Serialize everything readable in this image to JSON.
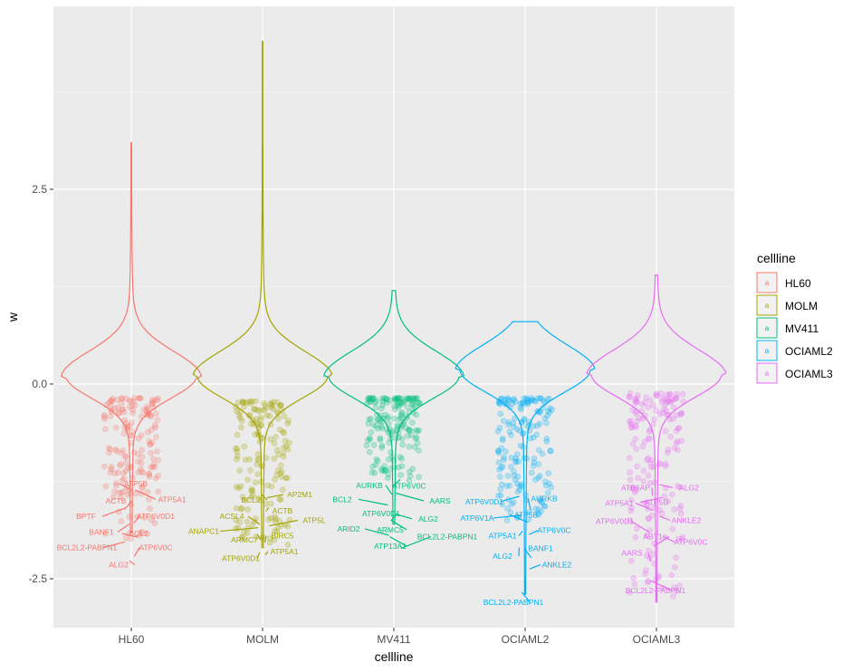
{
  "chart_data": {
    "type": "violin",
    "xlabel": "cellline",
    "ylabel": "w",
    "ylim": [
      -3.0,
      4.9
    ],
    "y_ticks": [
      -2.5,
      0.0,
      2.5
    ],
    "y_tick_labels": [
      "-2.5",
      "0.0",
      "2.5"
    ],
    "categories": [
      "HL60",
      "MOLM",
      "MV411",
      "OCIAML2",
      "OCIAML3"
    ],
    "legend": {
      "title": "cellline",
      "position": "right",
      "items": [
        "HL60",
        "MOLM",
        "MV411",
        "OCIAML2",
        "OCIAML3"
      ]
    },
    "colors": {
      "HL60": "#F8766D",
      "MOLM": "#A3A500",
      "MV411": "#00BF7D",
      "OCIAML2": "#00B0F6",
      "OCIAML3": "#E76BF3"
    },
    "series": [
      {
        "name": "HL60",
        "violin": {
          "min": -1.9,
          "max": 3.1,
          "mode": 0.1,
          "width": 0.47
        },
        "points": {
          "count": 170,
          "ymin": -2.0,
          "ymax": -0.18
        },
        "labels": [
          {
            "text": "ATP5B",
            "x": 150,
            "y": -1.28
          },
          {
            "text": "ATP5A1",
            "x": 190,
            "y": -1.48
          },
          {
            "text": "ACTB",
            "x": 128,
            "y": -1.5
          },
          {
            "text": "BPTF",
            "x": 95,
            "y": -1.7
          },
          {
            "text": "ATP6V0D1",
            "x": 172,
            "y": -1.7
          },
          {
            "text": "BANF1",
            "x": 112,
            "y": -1.9
          },
          {
            "text": "BCL2",
            "x": 153,
            "y": -1.92
          },
          {
            "text": "BCL2L2-PABPN1",
            "x": 96,
            "y": -2.1
          },
          {
            "text": "ATP6V0C",
            "x": 172,
            "y": -2.1
          },
          {
            "text": "ALG2",
            "x": 131,
            "y": -2.32
          }
        ]
      },
      {
        "name": "MOLM",
        "violin": {
          "min": -2.1,
          "max": 4.4,
          "mode": 0.1,
          "width": 0.47
        },
        "points": {
          "count": 170,
          "ymin": -2.1,
          "ymax": -0.22
        },
        "labels": [
          {
            "text": "AP2M1",
            "x": 331,
            "y": -1.42
          },
          {
            "text": "BCL2",
            "x": 277,
            "y": -1.49
          },
          {
            "text": "ACSL4",
            "x": 256,
            "y": -1.7
          },
          {
            "text": "ACTB",
            "x": 312,
            "y": -1.63
          },
          {
            "text": "ATP5L",
            "x": 347,
            "y": -1.75
          },
          {
            "text": "ANAPC1",
            "x": 225,
            "y": -1.89
          },
          {
            "text": "BIRC5",
            "x": 312,
            "y": -1.95
          },
          {
            "text": "ARMC7",
            "x": 270,
            "y": -2.0
          },
          {
            "text": "ATP5A1",
            "x": 314,
            "y": -2.15
          },
          {
            "text": "ATP6V0D1",
            "x": 266,
            "y": -2.24
          }
        ]
      },
      {
        "name": "MV411",
        "violin": {
          "min": -1.8,
          "max": 1.2,
          "mode": 0.1,
          "width": 0.47
        },
        "points": {
          "count": 170,
          "ymin": -1.25,
          "ymax": -0.18
        },
        "labels": [
          {
            "text": "AURKB",
            "x": 408,
            "y": -1.3
          },
          {
            "text": "ATP6V0C",
            "x": 452,
            "y": -1.31
          },
          {
            "text": "BCL2",
            "x": 378,
            "y": -1.48
          },
          {
            "text": "AARS",
            "x": 486,
            "y": -1.5
          },
          {
            "text": "ATP6V0D1",
            "x": 421,
            "y": -1.66
          },
          {
            "text": "ALG2",
            "x": 473,
            "y": -1.73
          },
          {
            "text": "ARID2",
            "x": 385,
            "y": -1.86
          },
          {
            "text": "ARMC5",
            "x": 431,
            "y": -1.87
          },
          {
            "text": "BCL2L2-PABPN1",
            "x": 494,
            "y": -1.96
          },
          {
            "text": "ATP13A1",
            "x": 431,
            "y": -2.08
          }
        ]
      },
      {
        "name": "OCIAML2",
        "violin": {
          "min": -2.7,
          "max": 0.8,
          "mode": 0.18,
          "width": 0.47
        },
        "points": {
          "count": 170,
          "ymin": -1.75,
          "ymax": -0.18
        },
        "labels": [
          {
            "text": "AURKB",
            "x": 601,
            "y": -1.47
          },
          {
            "text": "ATP6V0D1",
            "x": 535,
            "y": -1.51
          },
          {
            "text": "ATP5B",
            "x": 581,
            "y": -1.68
          },
          {
            "text": "ATP6V1A",
            "x": 527,
            "y": -1.72
          },
          {
            "text": "ATP6V0C",
            "x": 612,
            "y": -1.88
          },
          {
            "text": "ATP5A1",
            "x": 555,
            "y": -1.95
          },
          {
            "text": "BANF1",
            "x": 597,
            "y": -2.11
          },
          {
            "text": "ALG2",
            "x": 555,
            "y": -2.21
          },
          {
            "text": "ANKLE2",
            "x": 615,
            "y": -2.32
          },
          {
            "text": "BCL2L2-PABPN1",
            "x": 567,
            "y": -2.8
          }
        ]
      },
      {
        "name": "OCIAML3",
        "violin": {
          "min": -2.8,
          "max": 1.4,
          "mode": 0.12,
          "width": 0.47
        },
        "points": {
          "count": 170,
          "ymin": -2.75,
          "ymax": -0.12
        },
        "labels": [
          {
            "text": "ATP6AP",
            "x": 702,
            "y": -1.33
          },
          {
            "text": "ALG2",
            "x": 761,
            "y": -1.33
          },
          {
            "text": "ATP5A1",
            "x": 684,
            "y": -1.53
          },
          {
            "text": "ATP5D",
            "x": 725,
            "y": -1.52
          },
          {
            "text": "ATP6V0D1",
            "x": 679,
            "y": -1.76
          },
          {
            "text": "ANKLE2",
            "x": 758,
            "y": -1.75
          },
          {
            "text": "ABT1",
            "x": 721,
            "y": -1.96
          },
          {
            "text": "ATP6V0C",
            "x": 763,
            "y": -2.03
          },
          {
            "text": "AARS",
            "x": 698,
            "y": -2.17
          },
          {
            "text": "BCL2L2-PABPN1",
            "x": 724,
            "y": -2.65
          }
        ]
      }
    ]
  }
}
